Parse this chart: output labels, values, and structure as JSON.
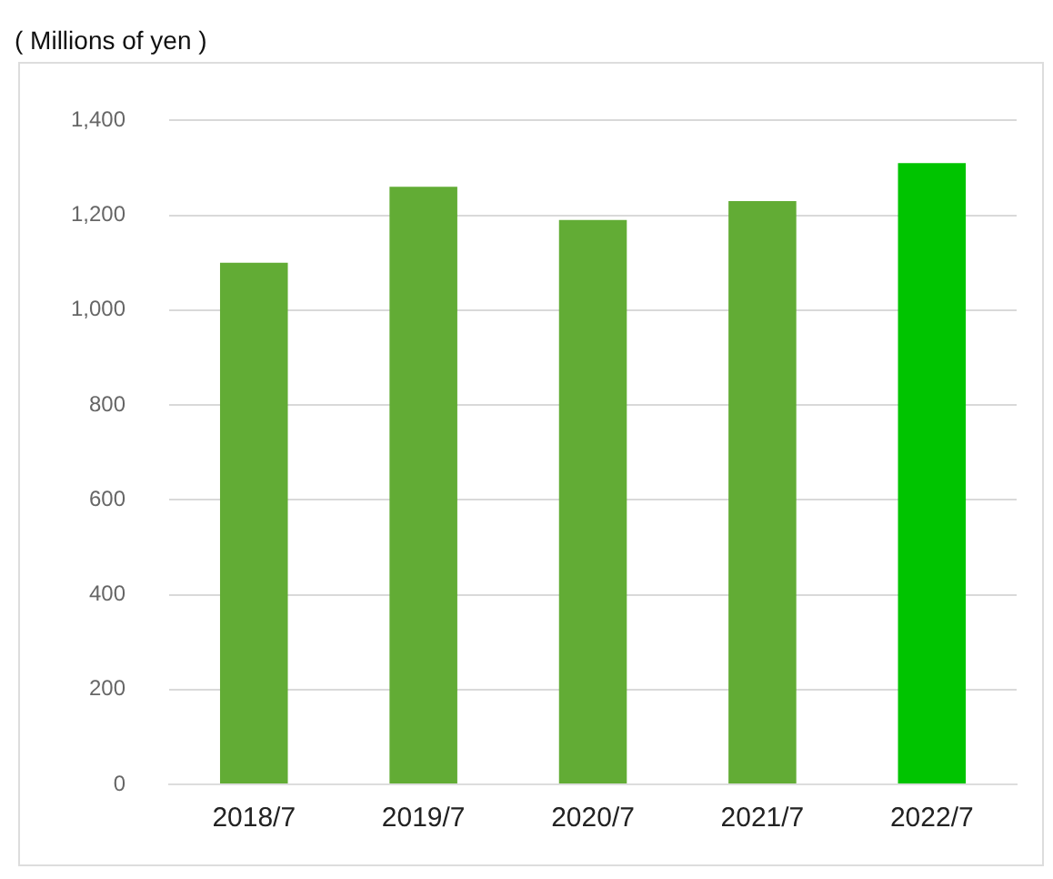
{
  "chart_data": {
    "type": "bar",
    "ylabel": "( Millions of yen )",
    "categories": [
      "2018/7",
      "2019/7",
      "2020/7",
      "2021/7",
      "2022/7"
    ],
    "values": [
      1100,
      1260,
      1190,
      1230,
      1310
    ],
    "colors": [
      "#62ac35",
      "#62ac35",
      "#62ac35",
      "#62ac35",
      "#00c400"
    ],
    "ylim": [
      0,
      1400
    ],
    "yticks": [
      0,
      200,
      400,
      600,
      800,
      {
        "value": 1000,
        "label": "1,000"
      },
      {
        "value": 1200,
        "label": "1,200"
      },
      {
        "value": 1400,
        "label": "1,400"
      }
    ],
    "grid": "y"
  }
}
